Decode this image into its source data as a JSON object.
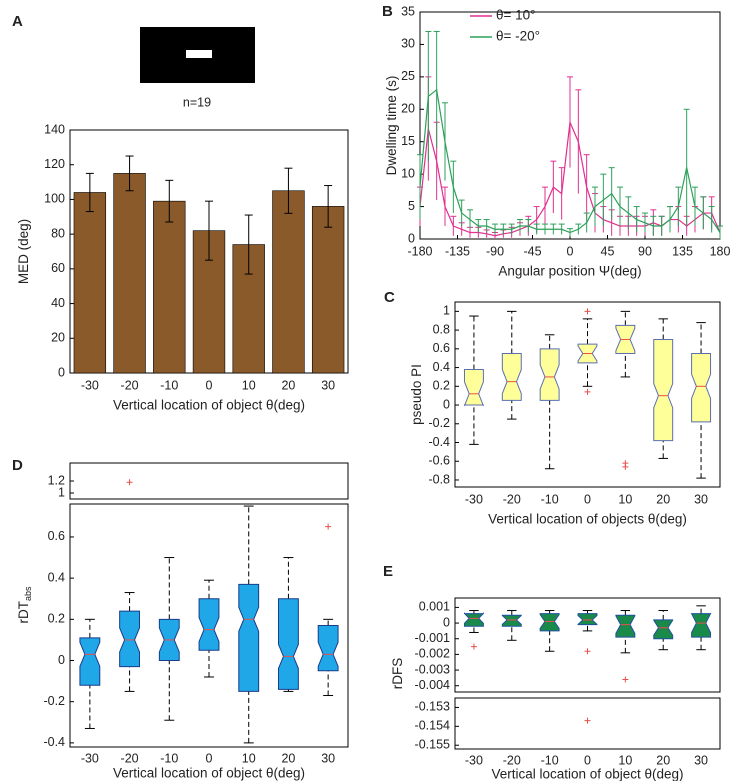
{
  "chart_data": [
    {
      "type": "bar",
      "panel": "A",
      "annotation": "n=19",
      "categories": [
        "-30",
        "-20",
        "-10",
        "0",
        "10",
        "20",
        "30"
      ],
      "values": [
        104,
        115,
        99,
        82,
        74,
        105,
        96
      ],
      "errors": [
        11,
        10,
        12,
        17,
        17,
        13,
        12
      ],
      "color": "#8b5a2b",
      "ylim": [
        0,
        140
      ],
      "yticks": [
        0,
        20,
        40,
        60,
        80,
        100,
        120,
        140
      ],
      "ylabel": "MED (deg)",
      "xlabel": "Vertical location of object θ(deg)"
    },
    {
      "type": "line",
      "panel": "B",
      "x": [
        -180,
        -170,
        -160,
        -150,
        -140,
        -130,
        -120,
        -110,
        -100,
        -90,
        -80,
        -70,
        -60,
        -50,
        -40,
        -30,
        -20,
        -10,
        0,
        10,
        20,
        30,
        40,
        50,
        60,
        70,
        80,
        90,
        100,
        110,
        120,
        130,
        140,
        150,
        160,
        170,
        180
      ],
      "series": [
        {
          "name": "θ= 10°",
          "color": "#e0308f",
          "values": [
            5,
            17,
            12,
            5,
            2,
            1.5,
            1,
            1,
            0.8,
            0.5,
            0.8,
            1,
            1.5,
            2,
            3,
            5,
            8,
            7,
            18,
            15,
            8,
            4,
            3,
            2.5,
            2,
            2,
            2,
            2,
            2.5,
            2,
            3,
            3,
            2,
            3,
            4,
            4,
            1
          ],
          "errors": [
            3,
            8,
            6,
            3,
            1.5,
            1,
            0.8,
            0.8,
            0.6,
            0.5,
            0.6,
            0.8,
            1,
            1.5,
            2,
            3,
            4,
            4,
            7,
            8,
            5,
            3,
            2,
            2,
            1.5,
            1.5,
            1.5,
            1.5,
            2,
            1.5,
            2,
            2,
            1.5,
            2,
            2.5,
            2.5,
            1
          ]
        },
        {
          "name": "θ= -20°",
          "color": "#2ca05a",
          "values": [
            8,
            22,
            23,
            15,
            8,
            4,
            3,
            2,
            2,
            1.5,
            1.5,
            1.5,
            2,
            2,
            1.5,
            1.5,
            1.5,
            1.5,
            1,
            1.5,
            2.5,
            5,
            6,
            7,
            5,
            4,
            3,
            2.5,
            2,
            2,
            3,
            5,
            11,
            5,
            4,
            3,
            1
          ],
          "errors": [
            5,
            10,
            9,
            6,
            4,
            2,
            1.5,
            1,
            1,
            0.8,
            0.8,
            0.8,
            1,
            1,
            0.8,
            0.8,
            0.8,
            0.8,
            0.6,
            0.8,
            1.5,
            3,
            4,
            4,
            3,
            2.5,
            2,
            1.5,
            1.5,
            1.5,
            2,
            3,
            9,
            3,
            2.5,
            2,
            1
          ]
        }
      ],
      "xlim": [
        -180,
        180
      ],
      "xticks": [
        -180,
        -135,
        -90,
        -45,
        0,
        45,
        90,
        135,
        180
      ],
      "ylim": [
        0,
        35
      ],
      "yticks": [
        0,
        5,
        10,
        15,
        20,
        25,
        30,
        35
      ],
      "xlabel": "Angular position Ψ(deg)",
      "ylabel": "Dwelling time (s)",
      "legend": "upper center"
    },
    {
      "type": "box",
      "panel": "C",
      "categories": [
        "-30",
        "-20",
        "-10",
        "0",
        "10",
        "20",
        "30"
      ],
      "boxes": [
        {
          "low": -0.42,
          "q1": 0.0,
          "median": 0.12,
          "q3": 0.38,
          "high": 0.95,
          "outliers": []
        },
        {
          "low": -0.15,
          "q1": 0.05,
          "median": 0.25,
          "q3": 0.55,
          "high": 1.0,
          "outliers": []
        },
        {
          "low": -0.68,
          "q1": 0.05,
          "median": 0.3,
          "q3": 0.6,
          "high": 0.75,
          "outliers": []
        },
        {
          "low": 0.2,
          "q1": 0.45,
          "median": 0.55,
          "q3": 0.65,
          "high": 0.92,
          "outliers": [
            1.0,
            0.14
          ]
        },
        {
          "low": 0.3,
          "q1": 0.55,
          "median": 0.7,
          "q3": 0.85,
          "high": 1.0,
          "outliers": [
            -0.62,
            -0.66
          ]
        },
        {
          "low": -0.57,
          "q1": -0.38,
          "median": 0.1,
          "q3": 0.7,
          "high": 0.92,
          "outliers": []
        },
        {
          "low": -0.78,
          "q1": -0.18,
          "median": 0.2,
          "q3": 0.55,
          "high": 0.88,
          "outliers": []
        }
      ],
      "color": "#ffff99",
      "edge_color": "#5a6fb0",
      "median_color": "#e8504a",
      "outlier_color": "#e8504a",
      "ylim": [
        -0.875,
        1.1
      ],
      "yticks": [
        -0.8,
        -0.6,
        -0.4,
        -0.2,
        0,
        0.2,
        0.4,
        0.6,
        0.8,
        1
      ],
      "ylabel": "pseudo PI",
      "xlabel": "Vertical location of objects θ(deg)"
    },
    {
      "type": "box",
      "panel": "D",
      "categories": [
        "-30",
        "-20",
        "-10",
        "0",
        "10",
        "20",
        "30"
      ],
      "boxes": [
        {
          "low": -0.33,
          "q1": -0.12,
          "median": 0.03,
          "q3": 0.11,
          "high": 0.2,
          "outliers": []
        },
        {
          "low": -0.15,
          "q1": -0.03,
          "median": 0.1,
          "q3": 0.24,
          "high": 0.33,
          "outliers": [
            1.18
          ]
        },
        {
          "low": -0.29,
          "q1": 0.0,
          "median": 0.1,
          "q3": 0.2,
          "high": 0.5,
          "outliers": []
        },
        {
          "low": -0.08,
          "q1": 0.05,
          "median": 0.15,
          "q3": 0.3,
          "high": 0.39,
          "outliers": []
        },
        {
          "low": -0.4,
          "q1": -0.15,
          "median": 0.2,
          "q3": 0.37,
          "high": 0.75,
          "outliers": []
        },
        {
          "low": -0.15,
          "q1": -0.14,
          "median": 0.02,
          "q3": 0.3,
          "high": 0.5,
          "outliers": []
        },
        {
          "low": -0.17,
          "q1": -0.05,
          "median": 0.03,
          "q3": 0.17,
          "high": 0.2,
          "outliers": [
            0.65
          ]
        }
      ],
      "color": "#1fa7e8",
      "edge_color": "#1a3c8a",
      "median_color": "#e8504a",
      "outlier_color": "#e8504a",
      "panels": [
        {
          "ylim": [
            0.9,
            1.5
          ],
          "yticks": [
            1,
            1.2
          ]
        },
        {
          "ylim": [
            -0.42,
            0.76
          ],
          "yticks": [
            -0.4,
            -0.2,
            0,
            0.2,
            0.4,
            0.6
          ]
        }
      ],
      "ylabel": "rDT",
      "ylabel_subscript": "abs",
      "xlabel": "Vertical location of object θ(deg)"
    },
    {
      "type": "box",
      "panel": "E",
      "categories": [
        "-30",
        "-20",
        "-10",
        "0",
        "10",
        "20",
        "30"
      ],
      "boxes": [
        {
          "low": -0.0006,
          "q1": -0.0002,
          "median": 0.0003,
          "q3": 0.0006,
          "high": 0.0008,
          "outliers": [
            -0.0015
          ]
        },
        {
          "low": -0.0011,
          "q1": -0.0002,
          "median": 0.0002,
          "q3": 0.0005,
          "high": 0.0008,
          "outliers": []
        },
        {
          "low": -0.0018,
          "q1": -0.0005,
          "median": 0.0001,
          "q3": 0.0006,
          "high": 0.0008,
          "outliers": []
        },
        {
          "low": -0.0005,
          "q1": -0.0001,
          "median": 0.0002,
          "q3": 0.0006,
          "high": 0.0008,
          "outliers": [
            -0.0018,
            -0.1537
          ]
        },
        {
          "low": -0.0019,
          "q1": -0.0009,
          "median": -0.0001,
          "q3": 0.0005,
          "high": 0.0008,
          "outliers": [
            -0.0036
          ]
        },
        {
          "low": -0.0017,
          "q1": -0.001,
          "median": -0.0003,
          "q3": 0.0002,
          "high": 0.0008,
          "outliers": []
        },
        {
          "low": -0.0017,
          "q1": -0.0009,
          "median": 0,
          "q3": 0.0006,
          "high": 0.0011,
          "outliers": []
        }
      ],
      "color": "#1a8a4a",
      "edge_color": "#2050a0",
      "median_color": "#e8504a",
      "outlier_color": "#e8504a",
      "panels": [
        {
          "ylim": [
            -0.0044,
            0.0016
          ],
          "yticks": [
            -0.004,
            -0.003,
            -0.002,
            -0.001,
            0,
            0.001
          ]
        },
        {
          "ylim": [
            -0.1552,
            -0.1525
          ],
          "yticks": [
            -0.155,
            -0.154,
            -0.153
          ]
        }
      ],
      "ylabel": "rDFS",
      "xlabel": "Vertical location of object θ(deg)"
    }
  ]
}
